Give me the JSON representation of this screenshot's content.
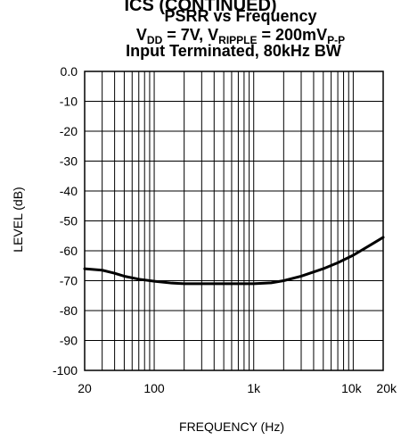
{
  "chart_data": {
    "type": "line",
    "header_fragment": "ICS (CONTINUED)",
    "title": "PSRR vs Frequency",
    "conditions": {
      "vdd_sym": "V",
      "vdd_sub": "DD",
      "vdd_val": " = 7V, ",
      "ripple_sym": "V",
      "ripple_sub": "RIPPLE",
      "ripple_val": " = 200mV",
      "ripple_unit_sub": "P-P"
    },
    "line3": "Input Terminated, 80kHz BW",
    "xlabel": "FREQUENCY (Hz)",
    "ylabel": "LEVEL (dB)",
    "x_scale": "log",
    "xlim": [
      20,
      20000
    ],
    "ylim": [
      -100,
      0
    ],
    "x_ticks": [
      20,
      100,
      1000,
      10000,
      20000
    ],
    "x_tick_labels": [
      "20",
      "100",
      "1k",
      "10k",
      "20k"
    ],
    "y_ticks": [
      0,
      -10,
      -20,
      -30,
      -40,
      -50,
      -60,
      -70,
      -80,
      -90,
      -100
    ],
    "y_tick_labels": [
      "0.0",
      "-10",
      "-20",
      "-30",
      "-40",
      "-50",
      "-60",
      "-70",
      "-80",
      "-90",
      "-100"
    ],
    "grid": true,
    "series": [
      {
        "x": [
          20,
          30,
          40,
          50,
          70,
          100,
          150,
          200,
          300,
          500,
          700,
          1000,
          1500,
          2000,
          3000,
          5000,
          7000,
          10000,
          15000,
          20000
        ],
        "y": [
          -66,
          -66.5,
          -67.5,
          -68.5,
          -69.5,
          -70.2,
          -70.8,
          -71,
          -71,
          -71,
          -71,
          -71,
          -70.7,
          -70,
          -68.5,
          -66,
          -64,
          -61.5,
          -58,
          -55.5
        ]
      }
    ],
    "colors": {
      "line": "#000000",
      "grid": "#000000",
      "background": "#ffffff"
    }
  }
}
